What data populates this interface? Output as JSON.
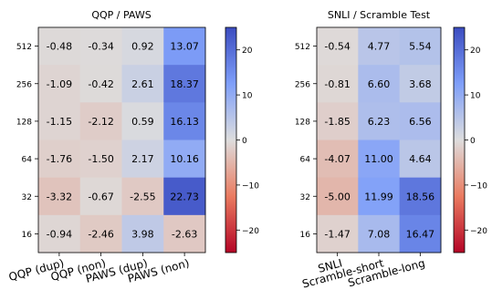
{
  "chart_data": [
    {
      "type": "heatmap",
      "title": "QQP / PAWS",
      "x_categories": [
        "QQP (dup)",
        "QQP (non)",
        "PAWS (dup)",
        "PAWS (non)"
      ],
      "y_categories": [
        "512",
        "256",
        "128",
        "64",
        "32",
        "16"
      ],
      "values": [
        [
          -0.48,
          -0.34,
          0.92,
          13.07
        ],
        [
          -1.09,
          -0.42,
          2.61,
          18.37
        ],
        [
          -1.15,
          -2.12,
          0.59,
          16.13
        ],
        [
          -1.76,
          -1.5,
          2.17,
          10.16
        ],
        [
          -3.32,
          -0.67,
          -2.55,
          22.73
        ],
        [
          -0.94,
          -2.46,
          3.98,
          -2.63
        ]
      ],
      "value_labels": [
        [
          "-0.48",
          "-0.34",
          "0.92",
          "13.07"
        ],
        [
          "-1.09",
          "-0.42",
          "2.61",
          "18.37"
        ],
        [
          "-1.15",
          "-2.12",
          "0.59",
          "16.13"
        ],
        [
          "-1.76",
          "-1.50",
          "2.17",
          "10.16"
        ],
        [
          "-3.32",
          "-0.67",
          "-2.55",
          "22.73"
        ],
        [
          "-0.94",
          "-2.46",
          "3.98",
          "-2.63"
        ]
      ],
      "colorbar": {
        "range": [
          -25,
          25
        ],
        "ticks": [
          -20,
          -10,
          0,
          10,
          20
        ],
        "tick_labels": [
          "−20",
          "−10",
          "0",
          "10",
          "20"
        ]
      }
    },
    {
      "type": "heatmap",
      "title": "SNLI / Scramble Test",
      "x_categories": [
        "SNLI",
        "Scramble-short",
        "Scramble-long"
      ],
      "y_categories": [
        "512",
        "256",
        "128",
        "64",
        "32",
        "16"
      ],
      "values": [
        [
          -0.54,
          4.77,
          5.54
        ],
        [
          -0.81,
          6.6,
          3.68
        ],
        [
          -1.85,
          6.23,
          6.56
        ],
        [
          -4.07,
          11.0,
          4.64
        ],
        [
          -5.0,
          11.99,
          18.56
        ],
        [
          -1.47,
          7.08,
          16.47
        ]
      ],
      "value_labels": [
        [
          "-0.54",
          "4.77",
          "5.54"
        ],
        [
          "-0.81",
          "6.60",
          "3.68"
        ],
        [
          "-1.85",
          "6.23",
          "6.56"
        ],
        [
          "-4.07",
          "11.00",
          "4.64"
        ],
        [
          "-5.00",
          "11.99",
          "18.56"
        ],
        [
          "-1.47",
          "7.08",
          "16.47"
        ]
      ],
      "colorbar": {
        "range": [
          -25,
          25
        ],
        "ticks": [
          -20,
          -10,
          0,
          10,
          20
        ],
        "tick_labels": [
          "−20",
          "−10",
          "0",
          "10",
          "20"
        ]
      }
    }
  ]
}
